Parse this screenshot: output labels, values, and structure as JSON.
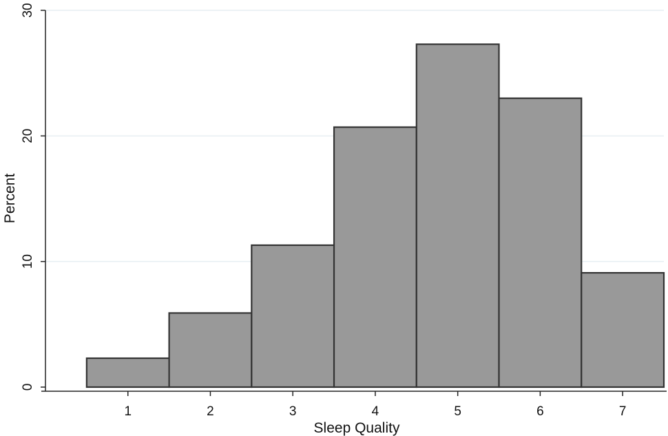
{
  "chart_data": {
    "type": "bar",
    "categories": [
      "1",
      "2",
      "3",
      "4",
      "5",
      "6",
      "7"
    ],
    "values": [
      2.3,
      5.9,
      11.3,
      20.7,
      27.3,
      23.0,
      9.1
    ],
    "xlabel": "Sleep Quality",
    "ylabel": "Percent",
    "xlim": [
      0,
      7.5
    ],
    "ylim": [
      0,
      30
    ],
    "yticks": [
      0,
      10,
      20,
      30
    ],
    "ytick_labels": [
      "0",
      "10",
      "20",
      "30"
    ],
    "grid": true,
    "legend": "none",
    "colors": {
      "bar_fill": "#999999",
      "bar_stroke": "#333333",
      "grid": "#e6eef2",
      "axis": "#222222"
    }
  }
}
